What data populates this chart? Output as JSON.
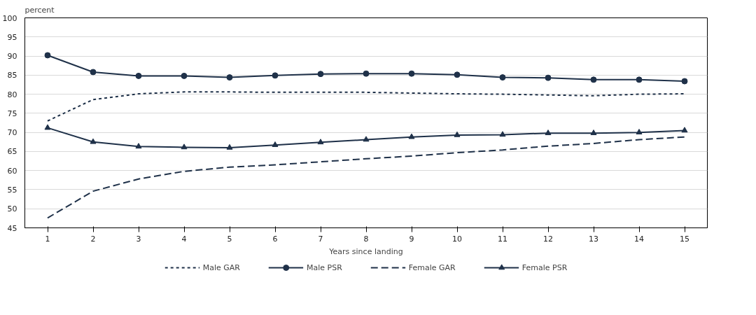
{
  "chart_data": {
    "type": "line",
    "xlabel": "Years since landing",
    "ylabel": "percent",
    "x": [
      1,
      2,
      3,
      4,
      5,
      6,
      7,
      8,
      9,
      10,
      11,
      12,
      13,
      14,
      15
    ],
    "xlim": [
      0.5,
      15.5
    ],
    "xticks": [
      1,
      2,
      3,
      4,
      5,
      6,
      7,
      8,
      9,
      10,
      11,
      12,
      13,
      14,
      15
    ],
    "ylim": [
      45,
      100
    ],
    "yticks": [
      45,
      50,
      55,
      60,
      65,
      70,
      75,
      80,
      85,
      90,
      95,
      100
    ],
    "grid": "y",
    "legend": "bottom",
    "series": [
      {
        "name": "Male GAR",
        "color": "#1f3149",
        "line_style": "dotted",
        "marker": "none",
        "values": [
          73.0,
          78.6,
          80.1,
          80.6,
          80.6,
          80.5,
          80.5,
          80.5,
          80.3,
          80.1,
          80.0,
          79.8,
          79.6,
          80.0,
          80.1
        ]
      },
      {
        "name": "Male PSR",
        "color": "#1f3149",
        "line_style": "solid",
        "marker": "circle",
        "values": [
          90.2,
          85.8,
          84.8,
          84.8,
          84.4,
          84.9,
          85.3,
          85.4,
          85.4,
          85.1,
          84.4,
          84.3,
          83.8,
          83.8,
          83.4
        ]
      },
      {
        "name": "Female GAR",
        "color": "#1f3149",
        "line_style": "dashed",
        "marker": "none",
        "values": [
          47.6,
          54.6,
          57.8,
          59.8,
          60.9,
          61.5,
          62.3,
          63.1,
          63.8,
          64.7,
          65.4,
          66.4,
          67.1,
          68.1,
          68.8
        ]
      },
      {
        "name": "Female PSR",
        "color": "#1f3149",
        "line_style": "solid",
        "marker": "triangle",
        "values": [
          71.2,
          67.5,
          66.3,
          66.1,
          66.0,
          66.7,
          67.4,
          68.1,
          68.8,
          69.3,
          69.4,
          69.8,
          69.8,
          70.0,
          70.5
        ]
      }
    ]
  }
}
